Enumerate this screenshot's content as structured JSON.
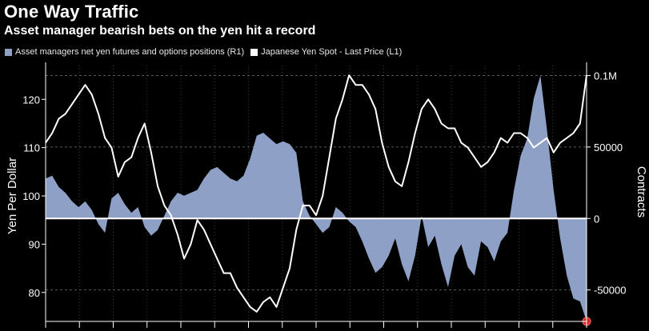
{
  "chart_data": {
    "type": "line",
    "title": "One Way Traffic",
    "subtitle": "Asset manager bearish bets on the yen hit a record",
    "legend": [
      {
        "label": "Asset managers net yen futures and options positions (R1)",
        "color": "#8ea0c6"
      },
      {
        "label": "Japanese Yen Spot - Last Price (L1)",
        "color": "#ffffff"
      }
    ],
    "left_axis": {
      "label": "Yen Per Dollar",
      "ticks": [
        "120",
        "110",
        "100",
        "90",
        "80"
      ],
      "range": [
        74,
        127
      ]
    },
    "right_axis": {
      "label": "Contracts",
      "ticks": [
        "0.1M",
        "50000",
        "0",
        "-50000"
      ],
      "range": [
        -72000,
        107000
      ]
    },
    "grid": "horizontal dashed",
    "series": [
      {
        "name": "Japanese Yen Spot - Last Price (L1)",
        "axis": "left",
        "color": "#ffffff",
        "values": [
          111,
          113,
          116,
          117,
          119,
          121,
          123,
          121,
          117,
          112,
          110,
          104,
          107,
          108,
          112,
          115,
          109,
          102,
          98,
          96,
          92,
          87,
          90,
          95,
          93,
          90,
          87,
          84,
          84,
          81,
          79,
          77,
          76,
          78,
          79,
          77,
          81,
          85,
          93,
          98,
          98,
          96,
          100,
          108,
          116,
          120,
          125,
          123,
          123,
          121,
          118,
          111,
          106,
          103,
          102,
          107,
          113,
          118,
          120,
          118,
          115,
          114,
          114,
          111,
          110,
          108,
          106,
          107,
          109,
          112,
          111,
          113,
          113,
          112,
          110,
          111,
          112,
          109,
          111,
          112,
          113,
          115,
          125
        ]
      },
      {
        "name": "Asset managers net yen futures and options positions (R1)",
        "axis": "right",
        "color": "#8ea0c6",
        "values": [
          28000,
          30000,
          22000,
          18000,
          12000,
          8000,
          12000,
          6000,
          -4000,
          -10000,
          14000,
          18000,
          10000,
          4000,
          8000,
          -6000,
          -12000,
          -8000,
          2000,
          12000,
          18000,
          16000,
          18000,
          20000,
          28000,
          34000,
          36000,
          32000,
          28000,
          26000,
          30000,
          42000,
          58000,
          60000,
          56000,
          52000,
          54000,
          52000,
          46000,
          12000,
          2000,
          -4000,
          -10000,
          -6000,
          8000,
          4000,
          -2000,
          -6000,
          -16000,
          -28000,
          -38000,
          -34000,
          -26000,
          -14000,
          -32000,
          -44000,
          -26000,
          2000,
          -20000,
          -12000,
          -32000,
          -48000,
          -26000,
          -18000,
          -34000,
          -40000,
          -16000,
          -20000,
          -30000,
          -16000,
          -10000,
          20000,
          44000,
          56000,
          84000,
          100000,
          62000,
          20000,
          -14000,
          -40000,
          -56000,
          -58000,
          -72000
        ]
      }
    ]
  }
}
